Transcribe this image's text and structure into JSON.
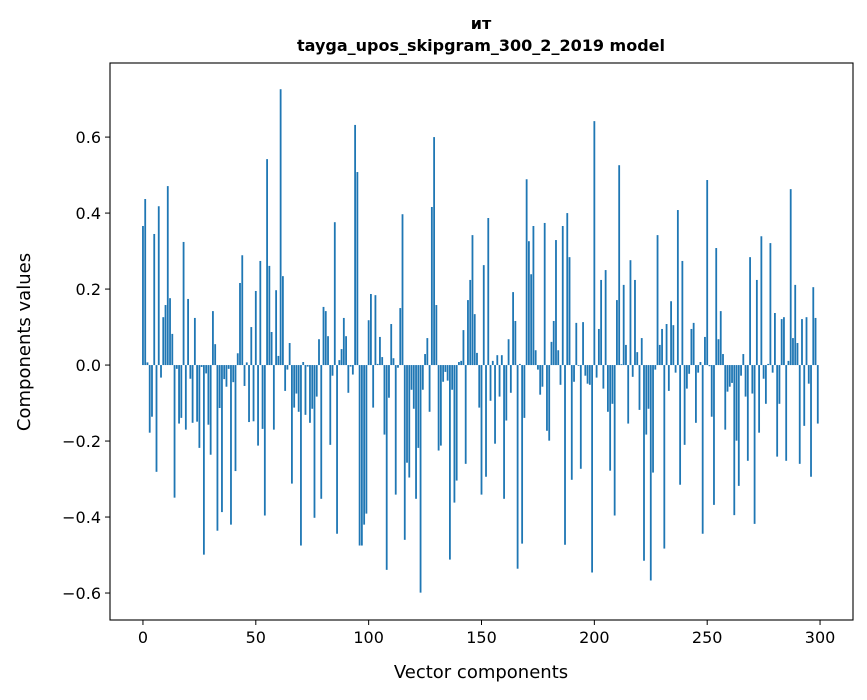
{
  "chart_data": {
    "type": "bar",
    "title_line1": "ит",
    "title_line2": "tayga_upos_skipgram_300_2_2019 model",
    "xlabel": "Vector components",
    "ylabel": "Components values",
    "xlim": [
      -14.6,
      314.6
    ],
    "ylim": [
      -0.671,
      0.795
    ],
    "xticks": [
      0,
      50,
      100,
      150,
      200,
      250,
      300
    ],
    "xtick_labels": [
      "0",
      "50",
      "100",
      "150",
      "200",
      "250",
      "300"
    ],
    "yticks": [
      -0.6,
      -0.4,
      -0.2,
      0.0,
      0.2,
      0.4,
      0.6
    ],
    "ytick_labels": [
      "−0.6",
      "−0.4",
      "−0.2",
      "0.0",
      "0.2",
      "0.4",
      "0.6"
    ],
    "grid": false,
    "bar_color": "#1f77b4",
    "values": [
      0.366,
      0.437,
      0.007,
      -0.178,
      -0.136,
      0.345,
      -0.281,
      0.418,
      -0.033,
      0.126,
      0.158,
      0.471,
      0.176,
      0.082,
      -0.349,
      -0.01,
      -0.154,
      -0.139,
      0.324,
      -0.17,
      0.174,
      -0.036,
      -0.152,
      0.124,
      -0.149,
      -0.218,
      -0.005,
      -0.499,
      -0.022,
      -0.157,
      -0.236,
      0.142,
      0.055,
      -0.436,
      -0.113,
      -0.387,
      -0.037,
      -0.057,
      -0.01,
      -0.42,
      -0.045,
      -0.279,
      0.031,
      0.216,
      0.289,
      -0.055,
      0.007,
      -0.15,
      0.1,
      -0.148,
      0.195,
      -0.212,
      0.274,
      -0.168,
      -0.396,
      0.542,
      0.261,
      0.087,
      -0.17,
      0.197,
      0.024,
      0.726,
      0.234,
      -0.068,
      -0.012,
      0.058,
      -0.312,
      -0.112,
      -0.075,
      -0.123,
      -0.475,
      0.008,
      -0.131,
      -0.004,
      -0.152,
      -0.115,
      -0.402,
      -0.083,
      0.068,
      -0.352,
      0.153,
      0.142,
      0.076,
      -0.21,
      -0.028,
      0.376,
      -0.444,
      0.013,
      0.042,
      0.124,
      0.076,
      -0.073,
      -0.004,
      -0.025,
      0.632,
      0.508,
      -0.475,
      -0.475,
      -0.42,
      -0.391,
      0.118,
      0.187,
      -0.112,
      0.184,
      0.003,
      0.074,
      0.021,
      -0.183,
      -0.539,
      -0.086,
      0.108,
      0.018,
      -0.341,
      -0.007,
      0.15,
      0.397,
      -0.46,
      -0.257,
      -0.296,
      -0.065,
      -0.115,
      -0.352,
      -0.218,
      -0.599,
      -0.065,
      0.029,
      0.071,
      -0.123,
      0.416,
      0.6,
      0.158,
      -0.225,
      -0.212,
      -0.044,
      -0.018,
      -0.041,
      -0.512,
      -0.065,
      -0.362,
      -0.304,
      0.008,
      0.011,
      0.092,
      -0.26,
      0.171,
      0.224,
      0.342,
      0.134,
      0.032,
      -0.112,
      -0.341,
      0.263,
      -0.294,
      0.387,
      -0.094,
      0.011,
      -0.207,
      0.026,
      -0.083,
      0.026,
      -0.352,
      -0.146,
      0.068,
      -0.073,
      0.192,
      0.116,
      -0.536,
      0.003,
      -0.47,
      -0.139,
      0.489,
      0.326,
      0.239,
      0.366,
      0.039,
      -0.012,
      -0.078,
      -0.057,
      0.374,
      -0.173,
      -0.199,
      0.061,
      0.116,
      0.329,
      0.039,
      -0.052,
      0.366,
      -0.473,
      0.4,
      0.284,
      -0.302,
      -0.044,
      0.111,
      -0.002,
      -0.273,
      0.113,
      -0.028,
      -0.049,
      -0.052,
      -0.546,
      0.642,
      -0.033,
      0.095,
      0.224,
      -0.062,
      0.25,
      -0.123,
      -0.278,
      -0.102,
      -0.396,
      0.171,
      0.526,
      0.002,
      0.211,
      0.053,
      -0.154,
      0.276,
      -0.031,
      0.224,
      0.034,
      -0.118,
      0.071,
      -0.515,
      -0.183,
      -0.115,
      -0.567,
      -0.283,
      -0.012,
      0.342,
      0.053,
      0.095,
      -0.483,
      0.108,
      -0.068,
      0.168,
      0.105,
      -0.02,
      0.408,
      -0.315,
      0.274,
      -0.21,
      -0.062,
      -0.023,
      0.095,
      0.111,
      -0.152,
      -0.02,
      0.008,
      -0.444,
      0.074,
      0.487,
      -0.003,
      -0.136,
      -0.368,
      0.308,
      0.068,
      0.142,
      0.029,
      -0.17,
      -0.07,
      -0.057,
      -0.047,
      -0.395,
      -0.199,
      -0.318,
      -0.028,
      0.029,
      -0.083,
      -0.252,
      0.284,
      -0.075,
      -0.418,
      0.224,
      -0.178,
      0.339,
      -0.036,
      -0.102,
      0.003,
      0.321,
      -0.02,
      0.137,
      -0.241,
      -0.102,
      0.121,
      0.126,
      -0.252,
      0.011,
      0.463,
      0.071,
      0.211,
      0.058,
      -0.26,
      0.121,
      -0.16,
      0.126,
      -0.049,
      -0.294,
      0.205,
      0.124,
      -0.154
    ]
  }
}
